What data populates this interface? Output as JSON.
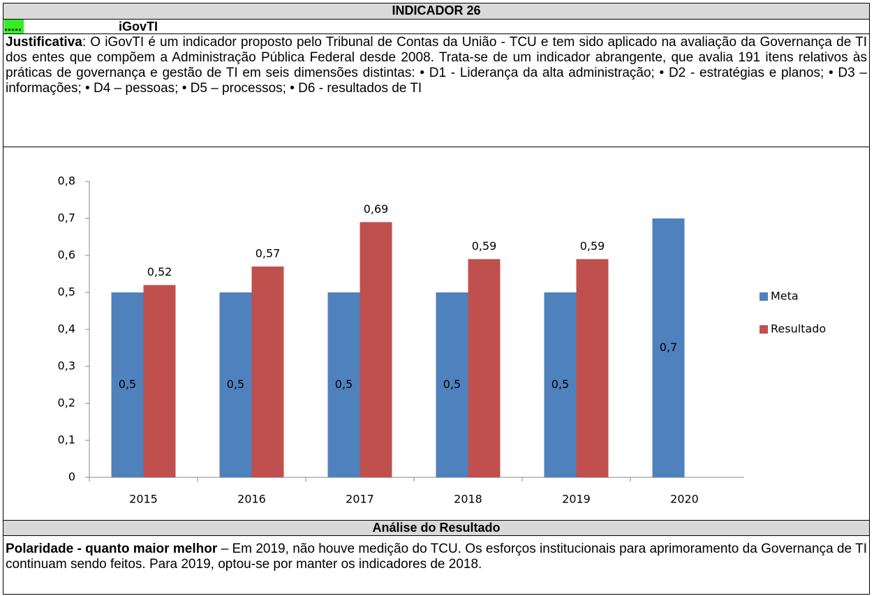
{
  "header": {
    "title": "INDICADOR 26",
    "marker": ".....",
    "name": "iGovTI"
  },
  "justification": {
    "label": "Justificativa",
    "text": ": O iGovTI é um indicador proposto pelo Tribunal de Contas da União - TCU e tem sido aplicado na avaliação da Governança de TI dos entes que compõem a Administração Pública Federal desde 2008. Trata-se de um indicador abrangente, que avalia 191 itens relativos às práticas de governança e gestão de TI em seis dimensões distintas: • D1 - Liderança da alta administração; • D2 - estratégias e planos; • D3 – informações; • D4 – pessoas; • D5 – processos; • D6 - resultados de TI"
  },
  "chart_data": {
    "type": "bar",
    "categories": [
      "2015",
      "2016",
      "2017",
      "2018",
      "2019",
      "2020"
    ],
    "series": [
      {
        "name": "Meta",
        "color": "#4f81bd",
        "values": [
          0.5,
          0.5,
          0.5,
          0.5,
          0.5,
          0.7
        ],
        "value_labels": [
          "0,5",
          "0,5",
          "0,5",
          "0,5",
          "0,5",
          "0,7"
        ]
      },
      {
        "name": "Resultado",
        "color": "#c0504d",
        "values": [
          0.52,
          0.57,
          0.69,
          0.59,
          0.59,
          null
        ],
        "value_labels": [
          "0,52",
          "0,57",
          "0,69",
          "0,59",
          "0,59",
          null
        ]
      }
    ],
    "ylim": [
      0,
      0.8
    ],
    "yticks": [
      0,
      {
        "value": 0.1,
        "label": "0,1"
      },
      {
        "value": 0.2,
        "label": "0,2"
      },
      {
        "value": 0.3,
        "label": "0,3"
      },
      {
        "value": 0.4,
        "label": "0,4"
      },
      {
        "value": 0.5,
        "label": "0,5"
      },
      {
        "value": 0.6,
        "label": "0,6"
      },
      {
        "value": 0.7,
        "label": "0,7"
      },
      {
        "value": 0.8,
        "label": "0,8"
      }
    ],
    "legend": "right"
  },
  "analysis": {
    "title": "Análise do Resultado",
    "label": "Polaridade - quanto maior melhor",
    "text": " – Em 2019, não houve medição do TCU. Os esforços institucionais para aprimoramento da Governança de TI continuam sendo feitos. Para 2019, optou-se por manter os indicadores de 2018."
  }
}
